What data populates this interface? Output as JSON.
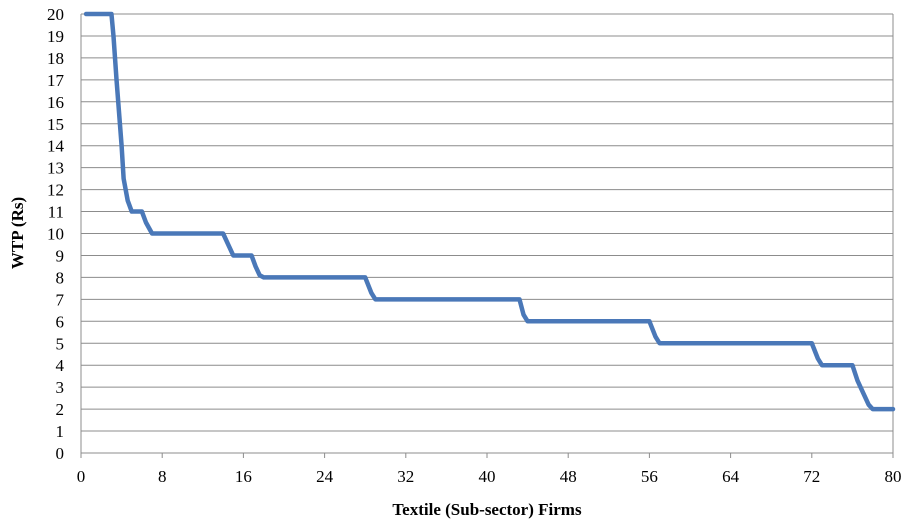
{
  "chart_data": {
    "type": "line",
    "xlabel": "Textile (Sub-sector) Firms",
    "ylabel": "WTP (Rs)",
    "xlim": [
      0,
      80
    ],
    "ylim": [
      0,
      20
    ],
    "x_ticks": [
      "0",
      "8",
      "16",
      "24",
      "32",
      "40",
      "48",
      "56",
      "64",
      "72",
      "80"
    ],
    "y_ticks": [
      "0",
      "1",
      "2",
      "3",
      "4",
      "5",
      "6",
      "7",
      "8",
      "9",
      "10",
      "11",
      "12",
      "13",
      "14",
      "15",
      "16",
      "17",
      "18",
      "19",
      "20"
    ],
    "grid": true,
    "legend": "none",
    "series_color": "#4a78b8",
    "series": [
      {
        "x": [
          0.5,
          3,
          3.2,
          3.5,
          4,
          4.2,
          4.6,
          5,
          6,
          6.4,
          7,
          13.5,
          14,
          14.6,
          15,
          16.8,
          17.2,
          17.6,
          18,
          27.6,
          28,
          28.6,
          29,
          42.8,
          43.2,
          43.6,
          44,
          55.6,
          56,
          56.6,
          57,
          71.6,
          72,
          72.6,
          73,
          75.6,
          76,
          76.5,
          77,
          77.6,
          78,
          80
        ],
        "y": [
          20,
          20,
          19,
          17,
          14,
          12.5,
          11.5,
          11,
          11,
          10.5,
          10,
          10,
          10,
          9.4,
          9,
          9,
          8.5,
          8.1,
          8,
          8,
          8,
          7.3,
          7,
          7,
          7,
          6.3,
          6,
          6,
          6,
          5.3,
          5,
          5,
          5,
          4.3,
          4,
          4,
          4,
          3.3,
          2.8,
          2.2,
          2,
          2
        ]
      }
    ]
  }
}
